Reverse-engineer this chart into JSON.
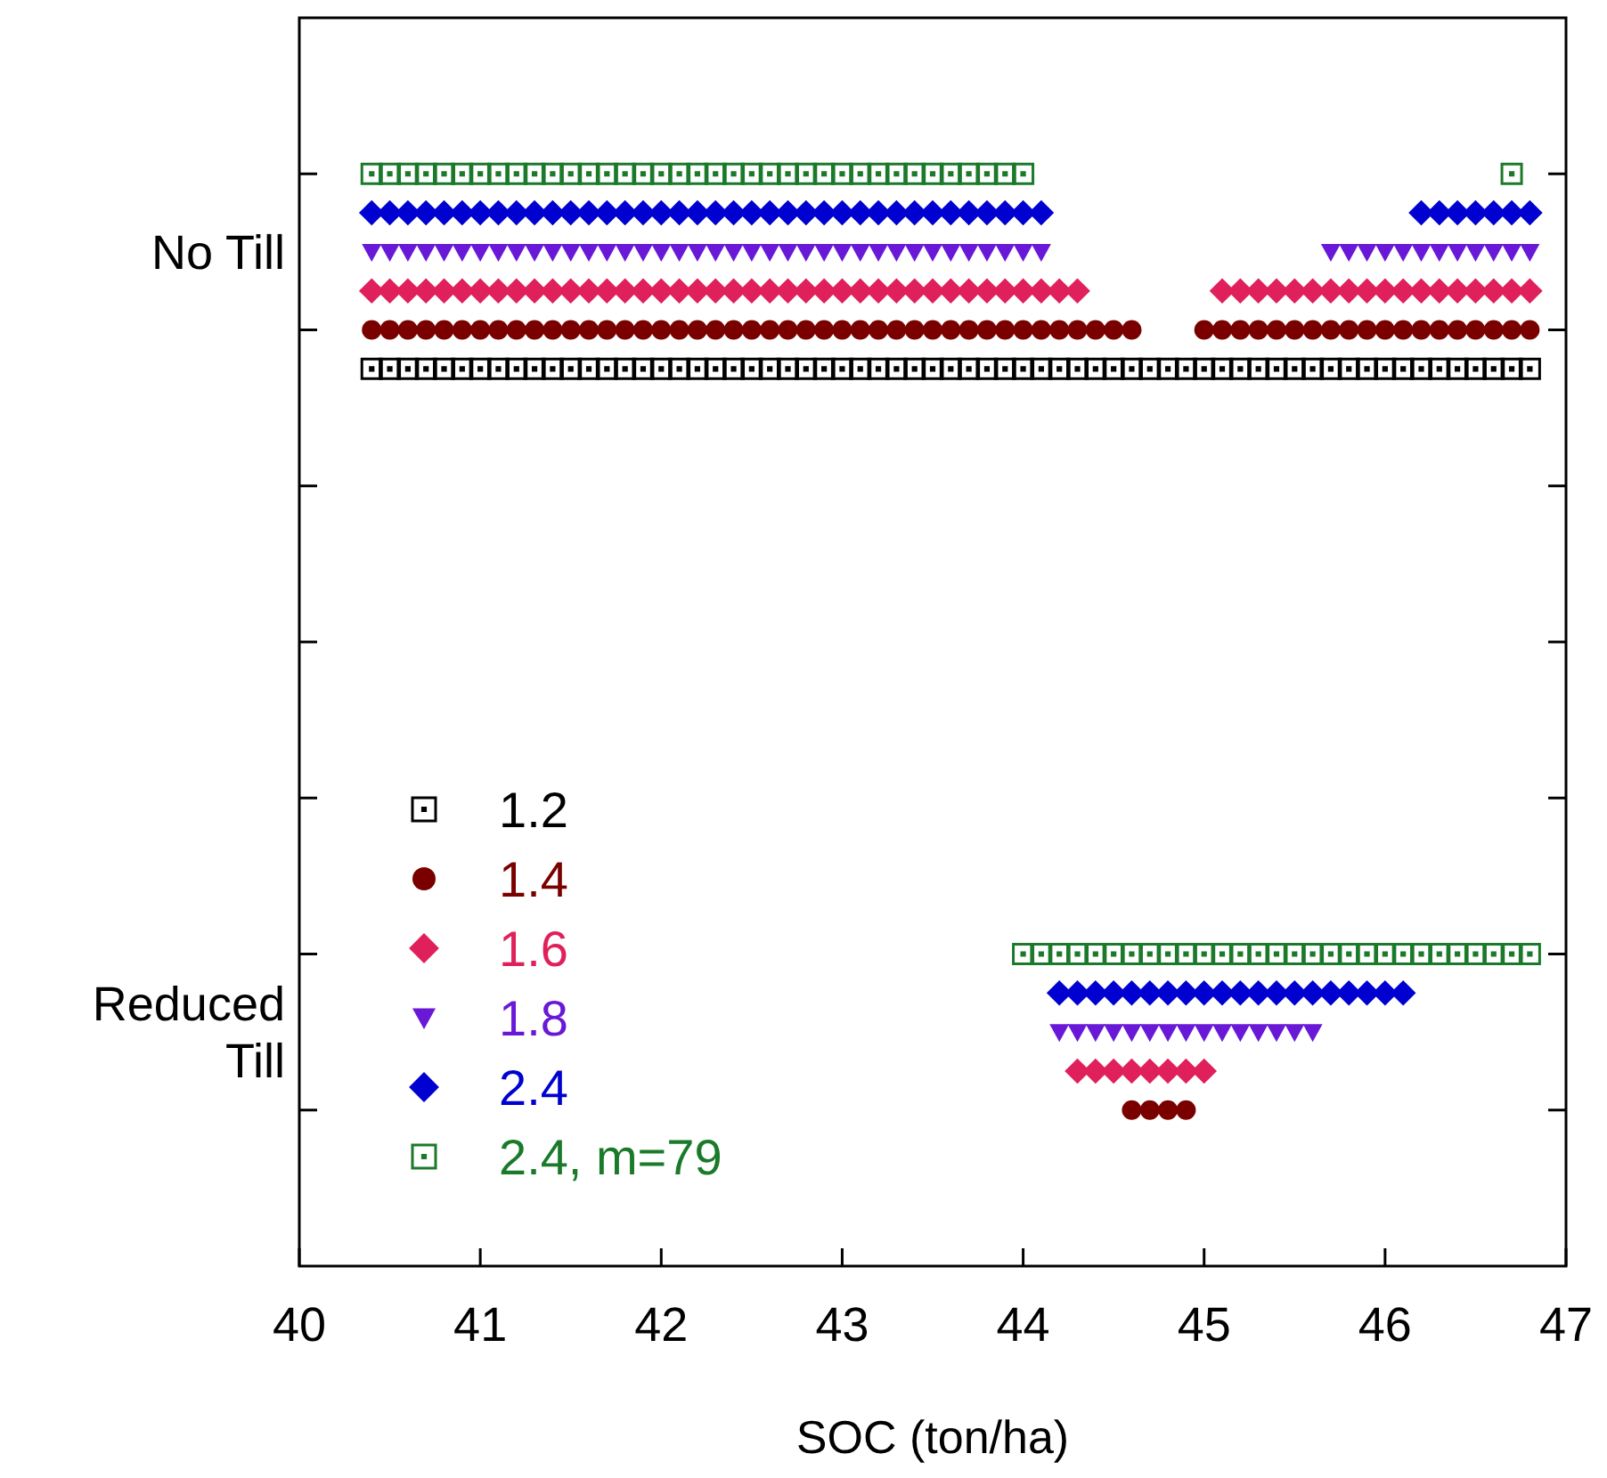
{
  "chart_data": {
    "type": "scatter",
    "orientation": "horizontal",
    "xlabel": "SOC (ton/ha)",
    "xlim": [
      40,
      47
    ],
    "xticks": [
      40,
      41,
      42,
      43,
      44,
      45,
      46,
      47
    ],
    "categories": [
      "No Till",
      "Reduced Till"
    ],
    "legend": "bottom left",
    "series": [
      {
        "name": "1.2",
        "color": "#000000",
        "marker": "square",
        "values": [
          40.4,
          40.5,
          40.6,
          40.7,
          40.8,
          40.9,
          41.0,
          41.1,
          41.2,
          41.3,
          41.4,
          41.5,
          41.6,
          41.7,
          41.8,
          41.9,
          42.0,
          42.1,
          42.2,
          42.3,
          42.4,
          42.5,
          42.6,
          42.7,
          42.8,
          42.9,
          43.0,
          43.1,
          43.2,
          43.3,
          43.4,
          43.5,
          43.6,
          43.7,
          43.8,
          43.9,
          44.0,
          44.1,
          44.2,
          44.3,
          44.4,
          44.5,
          44.6,
          44.7,
          44.8,
          44.9,
          45.0,
          45.1,
          45.2,
          45.3,
          45.4,
          45.5,
          45.6,
          45.7,
          45.8,
          45.9,
          46.0,
          46.1,
          46.2,
          46.3,
          46.4,
          46.5,
          46.6,
          46.7,
          46.8
        ],
        "x": [
          "No Till",
          "No Till",
          "No Till",
          "No Till",
          "No Till",
          "No Till",
          "No Till",
          "No Till",
          "No Till",
          "No Till",
          "No Till",
          "No Till",
          "No Till",
          "No Till",
          "No Till",
          "No Till",
          "No Till",
          "No Till",
          "No Till",
          "No Till",
          "No Till",
          "No Till",
          "No Till",
          "No Till",
          "No Till",
          "No Till",
          "No Till",
          "No Till",
          "No Till",
          "No Till",
          "No Till",
          "No Till",
          "No Till",
          "No Till",
          "No Till",
          "No Till",
          "No Till",
          "No Till",
          "No Till",
          "No Till",
          "No Till",
          "No Till",
          "No Till",
          "No Till",
          "No Till",
          "No Till",
          "No Till",
          "No Till",
          "No Till",
          "No Till",
          "No Till",
          "No Till",
          "No Till",
          "No Till",
          "No Till",
          "No Till",
          "No Till",
          "No Till",
          "No Till",
          "No Till",
          "No Till",
          "No Till",
          "No Till",
          "No Till",
          "No Till"
        ]
      },
      {
        "name": "1.4",
        "color": "#7a0000",
        "marker": "circle",
        "values": [
          40.4,
          40.5,
          40.6,
          40.7,
          40.8,
          40.9,
          41.0,
          41.1,
          41.2,
          41.3,
          41.4,
          41.5,
          41.6,
          41.7,
          41.8,
          41.9,
          42.0,
          42.1,
          42.2,
          42.3,
          42.4,
          42.5,
          42.6,
          42.7,
          42.8,
          42.9,
          43.0,
          43.1,
          43.2,
          43.3,
          43.4,
          43.5,
          43.6,
          43.7,
          43.8,
          43.9,
          44.0,
          44.1,
          44.2,
          44.3,
          44.4,
          44.5,
          44.6,
          45.0,
          45.1,
          45.2,
          45.3,
          45.4,
          45.5,
          45.6,
          45.7,
          45.8,
          45.9,
          46.0,
          46.1,
          46.2,
          46.3,
          46.4,
          46.5,
          46.6,
          46.7,
          46.8,
          44.6,
          44.7,
          44.8,
          44.9
        ],
        "x": [
          "No Till",
          "No Till",
          "No Till",
          "No Till",
          "No Till",
          "No Till",
          "No Till",
          "No Till",
          "No Till",
          "No Till",
          "No Till",
          "No Till",
          "No Till",
          "No Till",
          "No Till",
          "No Till",
          "No Till",
          "No Till",
          "No Till",
          "No Till",
          "No Till",
          "No Till",
          "No Till",
          "No Till",
          "No Till",
          "No Till",
          "No Till",
          "No Till",
          "No Till",
          "No Till",
          "No Till",
          "No Till",
          "No Till",
          "No Till",
          "No Till",
          "No Till",
          "No Till",
          "No Till",
          "No Till",
          "No Till",
          "No Till",
          "No Till",
          "No Till",
          "No Till",
          "No Till",
          "No Till",
          "No Till",
          "No Till",
          "No Till",
          "No Till",
          "No Till",
          "No Till",
          "No Till",
          "No Till",
          "No Till",
          "No Till",
          "No Till",
          "No Till",
          "No Till",
          "No Till",
          "No Till",
          "No Till",
          "Reduced Till",
          "Reduced Till",
          "Reduced Till",
          "Reduced Till"
        ]
      },
      {
        "name": "1.6",
        "color": "#e0205a",
        "marker": "diamond",
        "values": [
          40.4,
          40.5,
          40.6,
          40.7,
          40.8,
          40.9,
          41.0,
          41.1,
          41.2,
          41.3,
          41.4,
          41.5,
          41.6,
          41.7,
          41.8,
          41.9,
          42.0,
          42.1,
          42.2,
          42.3,
          42.4,
          42.5,
          42.6,
          42.7,
          42.8,
          42.9,
          43.0,
          43.1,
          43.2,
          43.3,
          43.4,
          43.5,
          43.6,
          43.7,
          43.8,
          43.9,
          44.0,
          44.1,
          44.2,
          44.3,
          45.1,
          45.2,
          45.3,
          45.4,
          45.5,
          45.6,
          45.7,
          45.8,
          45.9,
          46.0,
          46.1,
          46.2,
          46.3,
          46.4,
          46.5,
          46.6,
          46.7,
          46.8,
          44.3,
          44.4,
          44.5,
          44.6,
          44.7,
          44.8,
          44.9,
          45.0
        ],
        "x": [
          "No Till",
          "No Till",
          "No Till",
          "No Till",
          "No Till",
          "No Till",
          "No Till",
          "No Till",
          "No Till",
          "No Till",
          "No Till",
          "No Till",
          "No Till",
          "No Till",
          "No Till",
          "No Till",
          "No Till",
          "No Till",
          "No Till",
          "No Till",
          "No Till",
          "No Till",
          "No Till",
          "No Till",
          "No Till",
          "No Till",
          "No Till",
          "No Till",
          "No Till",
          "No Till",
          "No Till",
          "No Till",
          "No Till",
          "No Till",
          "No Till",
          "No Till",
          "No Till",
          "No Till",
          "No Till",
          "No Till",
          "No Till",
          "No Till",
          "No Till",
          "No Till",
          "No Till",
          "No Till",
          "No Till",
          "No Till",
          "No Till",
          "No Till",
          "No Till",
          "No Till",
          "No Till",
          "No Till",
          "No Till",
          "No Till",
          "No Till",
          "No Till",
          "Reduced Till",
          "Reduced Till",
          "Reduced Till",
          "Reduced Till",
          "Reduced Till",
          "Reduced Till",
          "Reduced Till",
          "Reduced Till"
        ]
      },
      {
        "name": "1.8",
        "color": "#6a18d8",
        "marker": "triangle",
        "values": [
          40.4,
          40.5,
          40.6,
          40.7,
          40.8,
          40.9,
          41.0,
          41.1,
          41.2,
          41.3,
          41.4,
          41.5,
          41.6,
          41.7,
          41.8,
          41.9,
          42.0,
          42.1,
          42.2,
          42.3,
          42.4,
          42.5,
          42.6,
          42.7,
          42.8,
          42.9,
          43.0,
          43.1,
          43.2,
          43.3,
          43.4,
          43.5,
          43.6,
          43.7,
          43.8,
          43.9,
          44.0,
          44.1,
          45.7,
          45.8,
          45.9,
          46.0,
          46.1,
          46.2,
          46.3,
          46.4,
          46.5,
          46.6,
          46.7,
          46.8,
          44.2,
          44.3,
          44.4,
          44.5,
          44.6,
          44.7,
          44.8,
          44.9,
          45.0,
          45.1,
          45.2,
          45.3,
          45.4,
          45.5,
          45.6
        ],
        "x": [
          "No Till",
          "No Till",
          "No Till",
          "No Till",
          "No Till",
          "No Till",
          "No Till",
          "No Till",
          "No Till",
          "No Till",
          "No Till",
          "No Till",
          "No Till",
          "No Till",
          "No Till",
          "No Till",
          "No Till",
          "No Till",
          "No Till",
          "No Till",
          "No Till",
          "No Till",
          "No Till",
          "No Till",
          "No Till",
          "No Till",
          "No Till",
          "No Till",
          "No Till",
          "No Till",
          "No Till",
          "No Till",
          "No Till",
          "No Till",
          "No Till",
          "No Till",
          "No Till",
          "No Till",
          "No Till",
          "No Till",
          "No Till",
          "No Till",
          "No Till",
          "No Till",
          "No Till",
          "No Till",
          "No Till",
          "No Till",
          "No Till",
          "No Till",
          "Reduced Till",
          "Reduced Till",
          "Reduced Till",
          "Reduced Till",
          "Reduced Till",
          "Reduced Till",
          "Reduced Till",
          "Reduced Till",
          "Reduced Till",
          "Reduced Till",
          "Reduced Till",
          "Reduced Till",
          "Reduced Till",
          "Reduced Till",
          "Reduced Till"
        ]
      },
      {
        "name": "2.4",
        "color": "#0000d0",
        "marker": "diamond",
        "values": [
          40.4,
          40.5,
          40.6,
          40.7,
          40.8,
          40.9,
          41.0,
          41.1,
          41.2,
          41.3,
          41.4,
          41.5,
          41.6,
          41.7,
          41.8,
          41.9,
          42.0,
          42.1,
          42.2,
          42.3,
          42.4,
          42.5,
          42.6,
          42.7,
          42.8,
          42.9,
          43.0,
          43.1,
          43.2,
          43.3,
          43.4,
          43.5,
          43.6,
          43.7,
          43.8,
          43.9,
          44.0,
          44.1,
          46.2,
          46.3,
          46.4,
          46.5,
          46.6,
          46.7,
          46.8,
          44.2,
          44.3,
          44.4,
          44.5,
          44.6,
          44.7,
          44.8,
          44.9,
          45.0,
          45.1,
          45.2,
          45.3,
          45.4,
          45.5,
          45.6,
          45.7,
          45.8,
          45.9,
          46.0,
          46.1
        ],
        "x": [
          "No Till",
          "No Till",
          "No Till",
          "No Till",
          "No Till",
          "No Till",
          "No Till",
          "No Till",
          "No Till",
          "No Till",
          "No Till",
          "No Till",
          "No Till",
          "No Till",
          "No Till",
          "No Till",
          "No Till",
          "No Till",
          "No Till",
          "No Till",
          "No Till",
          "No Till",
          "No Till",
          "No Till",
          "No Till",
          "No Till",
          "No Till",
          "No Till",
          "No Till",
          "No Till",
          "No Till",
          "No Till",
          "No Till",
          "No Till",
          "No Till",
          "No Till",
          "No Till",
          "No Till",
          "No Till",
          "No Till",
          "No Till",
          "No Till",
          "No Till",
          "No Till",
          "No Till",
          "Reduced Till",
          "Reduced Till",
          "Reduced Till",
          "Reduced Till",
          "Reduced Till",
          "Reduced Till",
          "Reduced Till",
          "Reduced Till",
          "Reduced Till",
          "Reduced Till",
          "Reduced Till",
          "Reduced Till",
          "Reduced Till",
          "Reduced Till",
          "Reduced Till",
          "Reduced Till",
          "Reduced Till",
          "Reduced Till",
          "Reduced Till",
          "Reduced Till"
        ]
      },
      {
        "name": "2.4, m=79",
        "color": "#1a7a2a",
        "marker": "square",
        "values": [
          40.4,
          40.5,
          40.6,
          40.7,
          40.8,
          40.9,
          41.0,
          41.1,
          41.2,
          41.3,
          41.4,
          41.5,
          41.6,
          41.7,
          41.8,
          41.9,
          42.0,
          42.1,
          42.2,
          42.3,
          42.4,
          42.5,
          42.6,
          42.7,
          42.8,
          42.9,
          43.0,
          43.1,
          43.2,
          43.3,
          43.4,
          43.5,
          43.6,
          43.7,
          43.8,
          43.9,
          44.0,
          46.7,
          44.0,
          44.1,
          44.2,
          44.3,
          44.4,
          44.5,
          44.6,
          44.7,
          44.8,
          44.9,
          45.0,
          45.1,
          45.2,
          45.3,
          45.4,
          45.5,
          45.6,
          45.7,
          45.8,
          45.9,
          46.0,
          46.1,
          46.2,
          46.3,
          46.4,
          46.5,
          46.6,
          46.7,
          46.8
        ],
        "x": [
          "No Till",
          "No Till",
          "No Till",
          "No Till",
          "No Till",
          "No Till",
          "No Till",
          "No Till",
          "No Till",
          "No Till",
          "No Till",
          "No Till",
          "No Till",
          "No Till",
          "No Till",
          "No Till",
          "No Till",
          "No Till",
          "No Till",
          "No Till",
          "No Till",
          "No Till",
          "No Till",
          "No Till",
          "No Till",
          "No Till",
          "No Till",
          "No Till",
          "No Till",
          "No Till",
          "No Till",
          "No Till",
          "No Till",
          "No Till",
          "No Till",
          "No Till",
          "No Till",
          "No Till",
          "Reduced Till",
          "Reduced Till",
          "Reduced Till",
          "Reduced Till",
          "Reduced Till",
          "Reduced Till",
          "Reduced Till",
          "Reduced Till",
          "Reduced Till",
          "Reduced Till",
          "Reduced Till",
          "Reduced Till",
          "Reduced Till",
          "Reduced Till",
          "Reduced Till",
          "Reduced Till",
          "Reduced Till",
          "Reduced Till",
          "Reduced Till",
          "Reduced Till",
          "Reduced Till",
          "Reduced Till",
          "Reduced Till",
          "Reduced Till",
          "Reduced Till",
          "Reduced Till",
          "Reduced Till",
          "Reduced Till",
          "Reduced Till"
        ]
      }
    ]
  }
}
